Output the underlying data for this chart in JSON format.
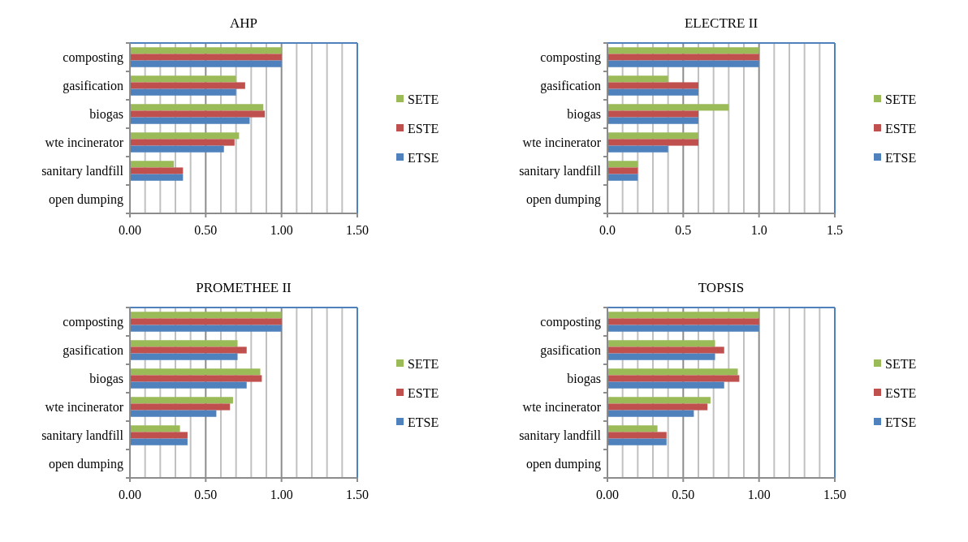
{
  "chart_data": [
    {
      "type": "bar",
      "orientation": "horizontal",
      "title": "AHP",
      "categories": [
        "composting",
        "gasification",
        "biogas",
        "wte incinerator",
        "sanitary landfill",
        "open dumping"
      ],
      "series": [
        {
          "name": "SETE",
          "color": "#9bbb59",
          "values": [
            1.0,
            0.7,
            0.88,
            0.72,
            0.29,
            0
          ]
        },
        {
          "name": "ESTE",
          "color": "#c0504d",
          "values": [
            1.0,
            0.76,
            0.89,
            0.69,
            0.35,
            0
          ]
        },
        {
          "name": "ETSE",
          "color": "#4f81bd",
          "values": [
            1.0,
            0.7,
            0.79,
            0.62,
            0.35,
            0
          ]
        }
      ],
      "xlim": [
        0,
        1.5
      ],
      "xticks": [
        {
          "value": 0,
          "label": "0.00"
        },
        {
          "value": 0.1,
          "label": null
        },
        {
          "value": 0.2,
          "label": null
        },
        {
          "value": 0.3,
          "label": null
        },
        {
          "value": 0.4,
          "label": null
        },
        {
          "value": 0.5,
          "label": "0.50"
        },
        {
          "value": 0.6,
          "label": null
        },
        {
          "value": 0.7,
          "label": null
        },
        {
          "value": 0.8,
          "label": null
        },
        {
          "value": 0.9,
          "label": null
        },
        {
          "value": 1,
          "label": "1.00"
        },
        {
          "value": 1.1,
          "label": null
        },
        {
          "value": 1.2,
          "label": null
        },
        {
          "value": 1.3,
          "label": null
        },
        {
          "value": 1.4,
          "label": null
        },
        {
          "value": 1.5,
          "label": "1.50"
        }
      ],
      "grid": "x",
      "legend": "right"
    },
    {
      "type": "bar",
      "orientation": "horizontal",
      "title": "ELECTRE II",
      "categories": [
        "composting",
        "gasification",
        "biogas",
        "wte incinerator",
        "sanitary landfill",
        "open dumping"
      ],
      "series": [
        {
          "name": "SETE",
          "color": "#9bbb59",
          "values": [
            1.0,
            0.4,
            0.8,
            0.6,
            0.2,
            0
          ]
        },
        {
          "name": "ESTE",
          "color": "#c0504d",
          "values": [
            1.0,
            0.6,
            0.6,
            0.6,
            0.2,
            0
          ]
        },
        {
          "name": "ETSE",
          "color": "#4f81bd",
          "values": [
            1.0,
            0.6,
            0.6,
            0.4,
            0.2,
            0
          ]
        }
      ],
      "xlim": [
        0,
        1.5
      ],
      "xticks": [
        {
          "value": 0,
          "label": "0.0"
        },
        {
          "value": 0.1,
          "label": null
        },
        {
          "value": 0.2,
          "label": null
        },
        {
          "value": 0.3,
          "label": null
        },
        {
          "value": 0.4,
          "label": null
        },
        {
          "value": 0.5,
          "label": "0.5"
        },
        {
          "value": 0.6,
          "label": null
        },
        {
          "value": 0.7,
          "label": null
        },
        {
          "value": 0.8,
          "label": null
        },
        {
          "value": 0.9,
          "label": null
        },
        {
          "value": 1,
          "label": "1.0"
        },
        {
          "value": 1.1,
          "label": null
        },
        {
          "value": 1.2,
          "label": null
        },
        {
          "value": 1.3,
          "label": null
        },
        {
          "value": 1.4,
          "label": null
        },
        {
          "value": 1.5,
          "label": "1.5"
        }
      ],
      "grid": "x",
      "legend": "right"
    },
    {
      "type": "bar",
      "orientation": "horizontal",
      "title": "PROMETHEE II",
      "categories": [
        "composting",
        "gasification",
        "biogas",
        "wte incinerator",
        "sanitary landfill",
        "open dumping"
      ],
      "series": [
        {
          "name": "SETE",
          "color": "#9bbb59",
          "values": [
            1.0,
            0.71,
            0.86,
            0.68,
            0.33,
            0
          ]
        },
        {
          "name": "ESTE",
          "color": "#c0504d",
          "values": [
            1.0,
            0.77,
            0.87,
            0.66,
            0.38,
            0
          ]
        },
        {
          "name": "ETSE",
          "color": "#4f81bd",
          "values": [
            1.0,
            0.71,
            0.77,
            0.57,
            0.38,
            0
          ]
        }
      ],
      "xlim": [
        0,
        1.5
      ],
      "xticks": [
        {
          "value": 0,
          "label": "0.00"
        },
        {
          "value": 0.1,
          "label": null
        },
        {
          "value": 0.2,
          "label": null
        },
        {
          "value": 0.3,
          "label": null
        },
        {
          "value": 0.4,
          "label": null
        },
        {
          "value": 0.5,
          "label": "0.50"
        },
        {
          "value": 0.6,
          "label": null
        },
        {
          "value": 0.7,
          "label": null
        },
        {
          "value": 0.8,
          "label": null
        },
        {
          "value": 0.9,
          "label": null
        },
        {
          "value": 1,
          "label": "1.00"
        },
        {
          "value": 1.1,
          "label": null
        },
        {
          "value": 1.2,
          "label": null
        },
        {
          "value": 1.3,
          "label": null
        },
        {
          "value": 1.4,
          "label": null
        },
        {
          "value": 1.5,
          "label": "1.50"
        }
      ],
      "grid": "x",
      "legend": "right"
    },
    {
      "type": "bar",
      "orientation": "horizontal",
      "title": "TOPSIS",
      "categories": [
        "composting",
        "gasification",
        "biogas",
        "wte incinerator",
        "sanitary landfill",
        "open dumping"
      ],
      "series": [
        {
          "name": "SETE",
          "color": "#9bbb59",
          "values": [
            1.0,
            0.71,
            0.86,
            0.68,
            0.33,
            0
          ]
        },
        {
          "name": "ESTE",
          "color": "#c0504d",
          "values": [
            1.0,
            0.77,
            0.87,
            0.66,
            0.39,
            0
          ]
        },
        {
          "name": "ETSE",
          "color": "#4f81bd",
          "values": [
            1.0,
            0.71,
            0.77,
            0.57,
            0.39,
            0
          ]
        }
      ],
      "xlim": [
        0,
        1.5
      ],
      "xticks": [
        {
          "value": 0,
          "label": "0.00"
        },
        {
          "value": 0.1,
          "label": null
        },
        {
          "value": 0.2,
          "label": null
        },
        {
          "value": 0.3,
          "label": null
        },
        {
          "value": 0.4,
          "label": null
        },
        {
          "value": 0.5,
          "label": "0.50"
        },
        {
          "value": 0.6,
          "label": null
        },
        {
          "value": 0.7,
          "label": null
        },
        {
          "value": 0.8,
          "label": null
        },
        {
          "value": 0.9,
          "label": null
        },
        {
          "value": 1,
          "label": "1.00"
        },
        {
          "value": 1.1,
          "label": null
        },
        {
          "value": 1.2,
          "label": null
        },
        {
          "value": 1.3,
          "label": null
        },
        {
          "value": 1.4,
          "label": null
        },
        {
          "value": 1.5,
          "label": "1.50"
        }
      ],
      "grid": "x",
      "legend": "right"
    }
  ]
}
